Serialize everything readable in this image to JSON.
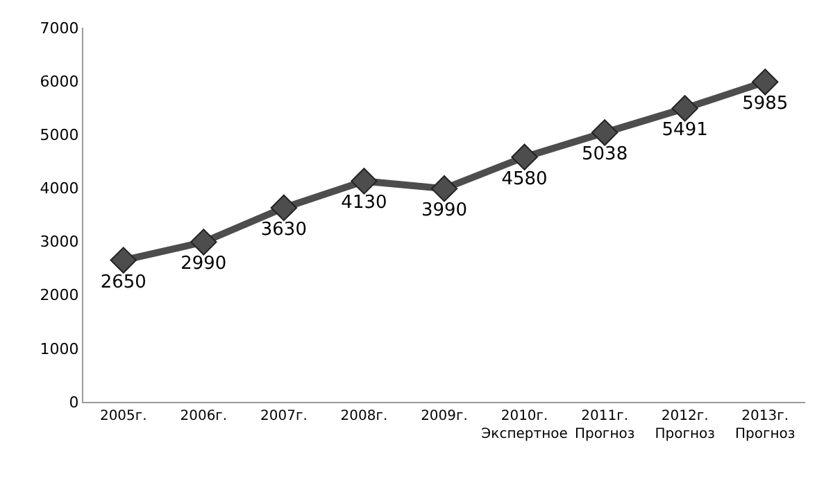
{
  "chart_data": {
    "type": "line",
    "categories": [
      "2005г.",
      "2006г.",
      "2007г.",
      "2008г.",
      "2009г.",
      "2010г.\nЭкспертное",
      "2011г.\nПрогноз",
      "2012г.\nПрогноз",
      "2013г.\nПрогноз"
    ],
    "series": [
      {
        "color": "#4d4d4d",
        "values": [
          2650,
          2990,
          3630,
          4130,
          3990,
          4580,
          5038,
          5491,
          5985
        ]
      }
    ],
    "ylim": [
      0,
      7000
    ],
    "yticks": [
      0,
      1000,
      2000,
      3000,
      4000,
      5000,
      6000,
      7000
    ],
    "marker": "diamond",
    "line_style": "solid",
    "data_labels": true
  }
}
